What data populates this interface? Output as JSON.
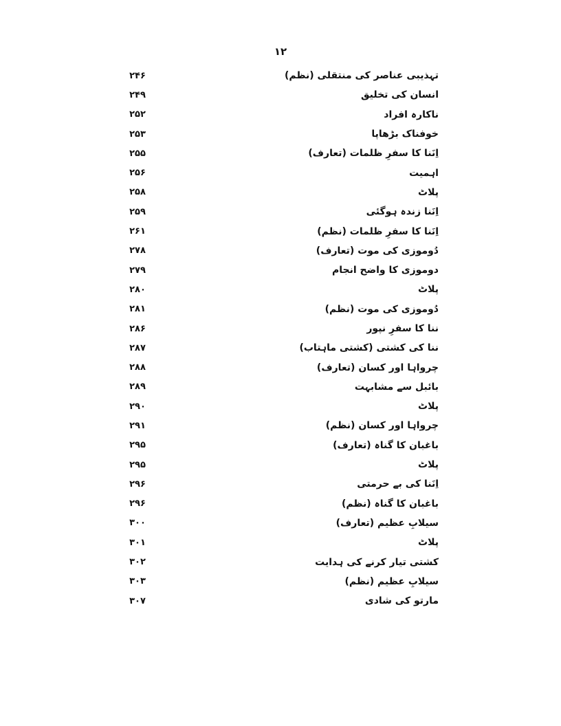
{
  "page_number": "۱۲",
  "entries": [
    {
      "title": "تہذیبی عناصر کی منتقلی (نظم)",
      "page": "۲۴۶"
    },
    {
      "title": "انسان کی تخلیق",
      "page": "۲۴۹"
    },
    {
      "title": "ناکارہ افراد",
      "page": "۲۵۲"
    },
    {
      "title": "خوفناک بڑھاپا",
      "page": "۲۵۳"
    },
    {
      "title": "اِنَنا کا سفرِ ظلمات (تعارف)",
      "page": "۲۵۵"
    },
    {
      "title": "اہمیت",
      "page": "۲۵۶"
    },
    {
      "title": "پلاٹ",
      "page": "۲۵۸"
    },
    {
      "title": "اِنَنا زندہ ہوگئی",
      "page": "۲۵۹"
    },
    {
      "title": "اِنَنا کا سفرِ ظلمات (نظم)",
      "page": "۲۶۱"
    },
    {
      "title": "دُوموزی کی موت (تعارف)",
      "page": "۲۷۸"
    },
    {
      "title": "دوموزی کا واضح انجام",
      "page": "۲۷۹"
    },
    {
      "title": "پلاٹ",
      "page": "۲۸۰"
    },
    {
      "title": "دُوموزی کی موت (نظم)",
      "page": "۲۸۱"
    },
    {
      "title": "ننا کا سفرِ نپور",
      "page": "۲۸۶"
    },
    {
      "title": "ننا کی کشتی (کشتی ماہتاب)",
      "page": "۲۸۷"
    },
    {
      "title": "چرواہا اور کسان (تعارف)",
      "page": "۲۸۸"
    },
    {
      "title": "بائبل سے مشابہت",
      "page": "۲۸۹"
    },
    {
      "title": "پلاٹ",
      "page": "۲۹۰"
    },
    {
      "title": "چرواہا اور کسان (نظم)",
      "page": "۲۹۱"
    },
    {
      "title": "باغبان کا گناہ (تعارف)",
      "page": "۲۹۵"
    },
    {
      "title": "پلاٹ",
      "page": "۲۹۵"
    },
    {
      "title": "اِنَنا کی بے حرمتی",
      "page": "۲۹۶"
    },
    {
      "title": "باغبان کا گناہ (نظم)",
      "page": "۲۹۶"
    },
    {
      "title": "سیلابِ عظیم (تعارف)",
      "page": "۳۰۰"
    },
    {
      "title": "پلاٹ",
      "page": "۳۰۱"
    },
    {
      "title": "کشتی تیار کرنے کی ہدایت",
      "page": "۳۰۲"
    },
    {
      "title": "سیلابِ عظیم (نظم)",
      "page": "۳۰۳"
    },
    {
      "title": "مارتو کی شادی",
      "page": "۳۰۷"
    }
  ]
}
